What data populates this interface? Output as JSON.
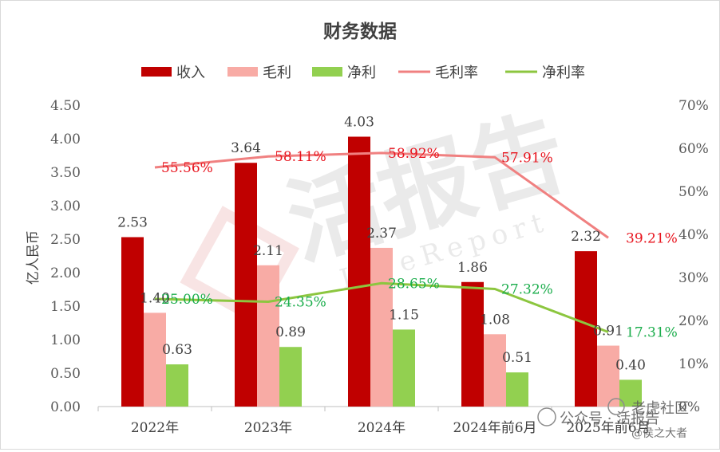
{
  "chart_data": {
    "type": "bar",
    "title": "财务数据",
    "ylabel": "亿人民币",
    "ylim": [
      0,
      4.5
    ],
    "yticks": [
      "0.00",
      "0.50",
      "1.00",
      "1.50",
      "2.00",
      "2.50",
      "3.00",
      "3.50",
      "4.00",
      "4.50"
    ],
    "y2lim": [
      0,
      70
    ],
    "y2ticks": [
      "0%",
      "10%",
      "20%",
      "30%",
      "40%",
      "50%",
      "60%",
      "70%"
    ],
    "categories": [
      "2022年",
      "2023年",
      "2024年",
      "2024年前6月",
      "2025年前6月"
    ],
    "series": [
      {
        "name": "收入",
        "kind": "bar",
        "color": "#c00000",
        "values": [
          2.53,
          3.64,
          4.03,
          1.86,
          2.32
        ],
        "labels": [
          "2.53",
          "3.64",
          "4.03",
          "1.86",
          "2.32"
        ]
      },
      {
        "name": "毛利",
        "kind": "bar",
        "color": "#f8aba5",
        "values": [
          1.4,
          2.11,
          2.37,
          1.08,
          0.91
        ],
        "labels": [
          "1.40",
          "2.11",
          "2.37",
          "1.08",
          "0.91"
        ]
      },
      {
        "name": "净利",
        "kind": "bar",
        "color": "#92d050",
        "values": [
          0.63,
          0.89,
          1.15,
          0.51,
          0.4
        ],
        "labels": [
          "0.63",
          "0.89",
          "1.15",
          "0.51",
          "0.40"
        ]
      },
      {
        "name": "毛利率",
        "kind": "line",
        "axis": "right",
        "color": "#f08080",
        "label_color": "#e8141e",
        "values": [
          55.56,
          58.11,
          58.92,
          57.91,
          39.21
        ],
        "labels": [
          "55.56%",
          "58.11%",
          "58.92%",
          "57.91%",
          "39.21%"
        ]
      },
      {
        "name": "净利率",
        "kind": "line",
        "axis": "right",
        "color": "#8cc63f",
        "label_color": "#1aad4b",
        "values": [
          25.0,
          24.35,
          28.65,
          27.32,
          17.31
        ],
        "labels": [
          "25.00%",
          "24.35%",
          "28.65%",
          "27.32%",
          "17.31%"
        ]
      }
    ],
    "legend": "top",
    "grid": false
  },
  "watermarks": {
    "brand": "活报告",
    "brand_sub": "LiveReport",
    "wechat": "公众号 · 活报告",
    "source": "老虎社区",
    "author": "@侯之大者"
  }
}
